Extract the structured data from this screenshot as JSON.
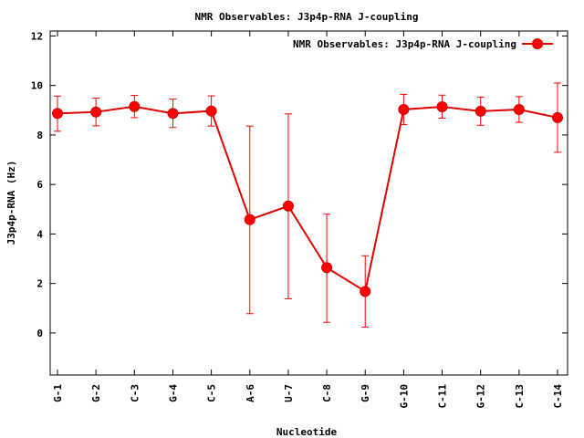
{
  "chart_data": {
    "type": "line",
    "title": "NMR Observables: J3p4p-RNA J-coupling",
    "xlabel": "Nucleotide",
    "ylabel": "J3p4p-RNA (Hz)",
    "categories": [
      "G-1",
      "G-2",
      "C-3",
      "G-4",
      "C-5",
      "A-6",
      "U-7",
      "C-8",
      "G-9",
      "G-10",
      "C-11",
      "G-12",
      "C-13",
      "C-14"
    ],
    "ylim": [
      -1.7,
      12.2
    ],
    "yticks": [
      0,
      2,
      4,
      6,
      8,
      10,
      12
    ],
    "grid": false,
    "legend_position": "top-right",
    "series": [
      {
        "name": "NMR Observables: J3p4p-RNA J-coupling",
        "color": "#ff0000",
        "values": [
          8.87,
          8.93,
          9.15,
          8.87,
          8.97,
          4.58,
          5.13,
          2.64,
          1.68,
          9.03,
          9.14,
          8.96,
          9.03,
          8.7
        ],
        "err_low": [
          8.15,
          8.37,
          8.7,
          8.3,
          8.36,
          0.78,
          1.38,
          0.43,
          0.24,
          8.42,
          8.68,
          8.39,
          8.51,
          7.3
        ],
        "err_high": [
          9.57,
          9.49,
          9.6,
          9.45,
          9.58,
          8.36,
          8.85,
          4.8,
          3.12,
          9.64,
          9.61,
          9.53,
          9.55,
          10.1
        ]
      }
    ]
  }
}
